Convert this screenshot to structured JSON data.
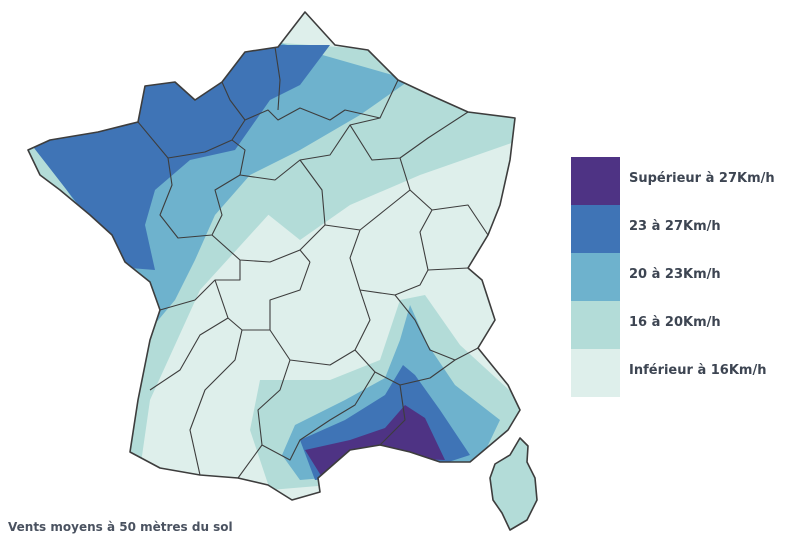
{
  "map": {
    "subject": "France",
    "caption": "Vents moyens à 50 mètres du sol",
    "categories": [
      {
        "label": "Supérieur à 27Km/h",
        "color": "#4e3384"
      },
      {
        "label": "23 à 27Km/h",
        "color": "#3f74b6"
      },
      {
        "label": "20 à 23Km/h",
        "color": "#6eb2cd"
      },
      {
        "label": "16 à 20Km/h",
        "color": "#b3dcd8"
      },
      {
        "label": "Inférieur à 16Km/h",
        "color": "#deefeb"
      }
    ]
  }
}
